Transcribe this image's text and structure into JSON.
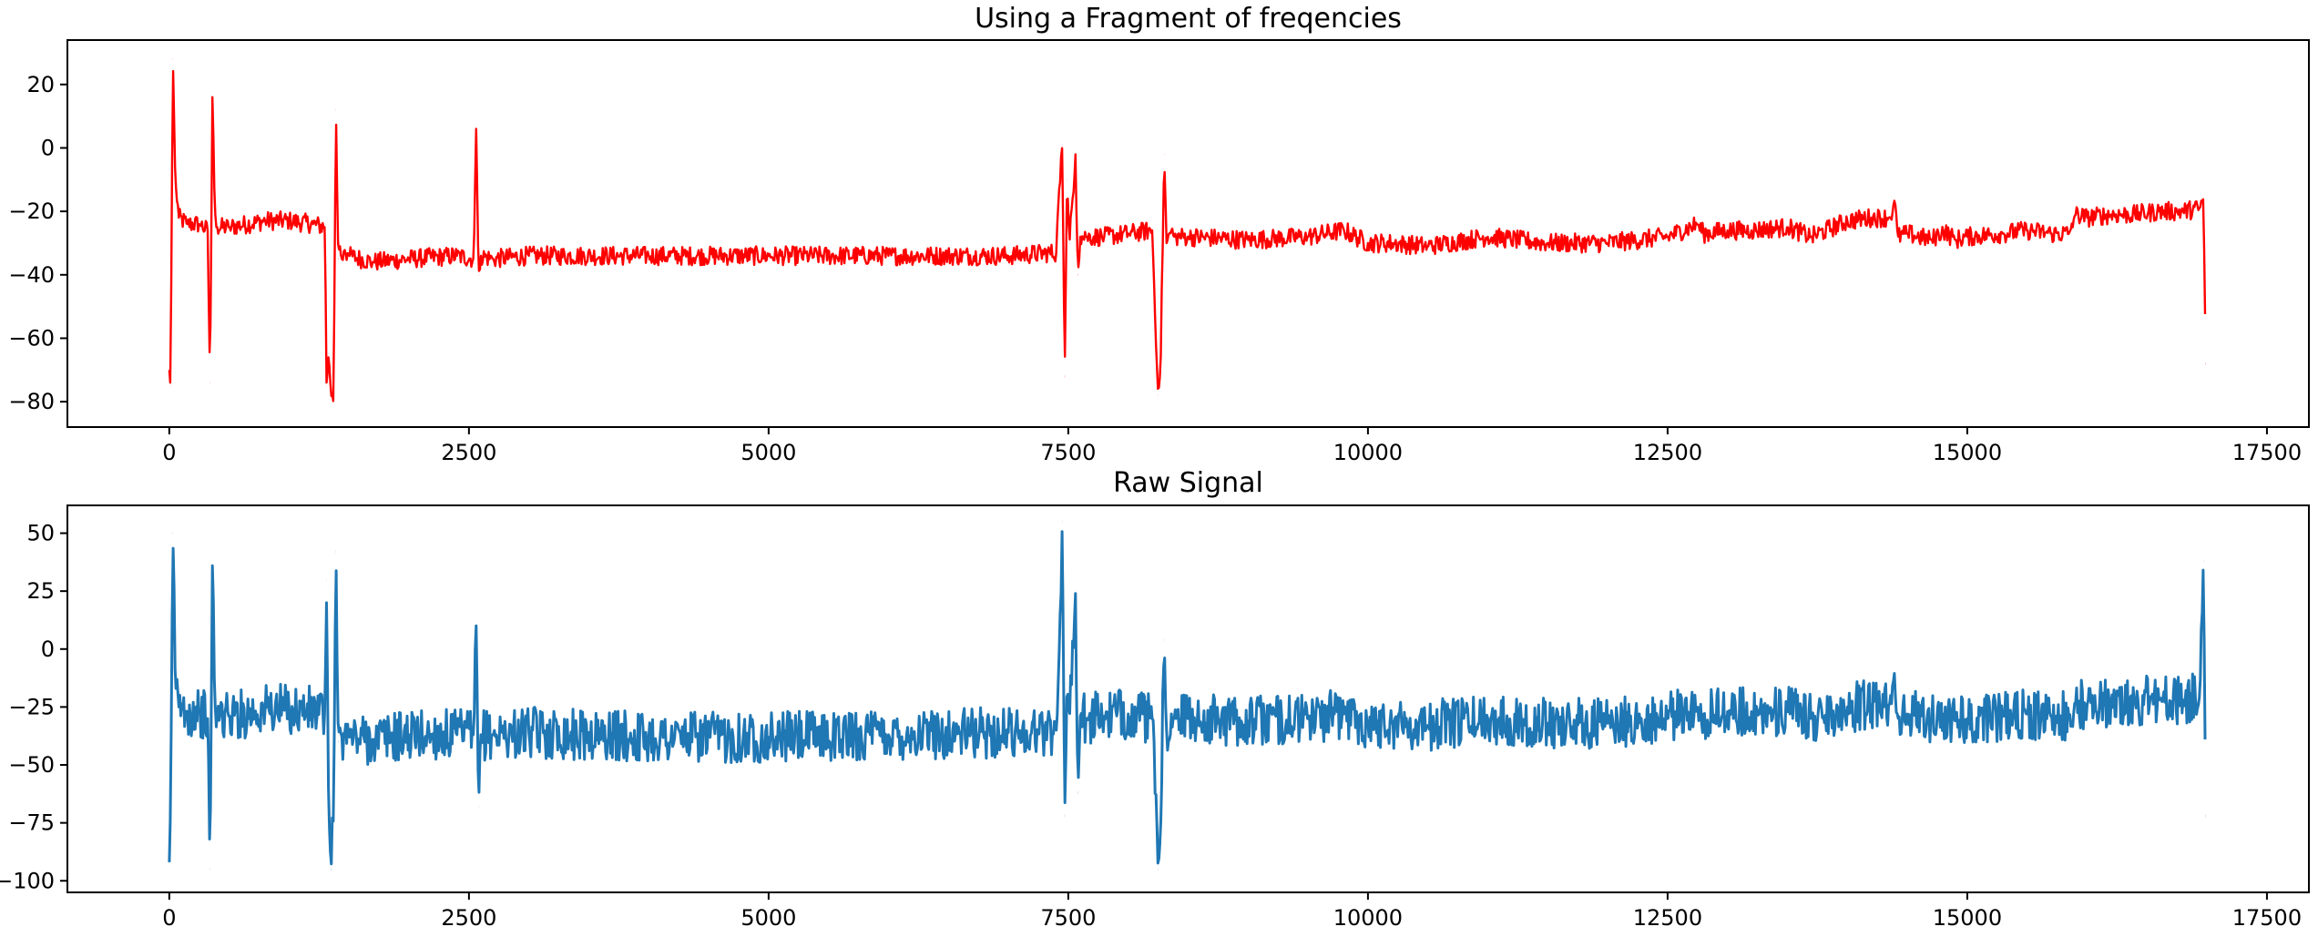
{
  "chart_data": [
    {
      "type": "line",
      "title": "Using a Fragment of freqencies",
      "xlabel": "",
      "ylabel": "",
      "xlim": [
        -850,
        17850
      ],
      "ylim": [
        -88,
        34
      ],
      "xticks": [
        0,
        2500,
        5000,
        7500,
        10000,
        12500,
        15000,
        17500
      ],
      "xtick_labels": [
        "0",
        "2500",
        "5000",
        "7500",
        "10000",
        "12500",
        "15000",
        "17500"
      ],
      "yticks": [
        20,
        0,
        -20,
        -40,
        -60,
        -80
      ],
      "ytick_labels": [
        "20",
        "0",
        "−20",
        "−40",
        "−60",
        "−80"
      ],
      "grid": false,
      "colors": {
        "line": "#ff0000"
      },
      "noise_amplitude": 3,
      "series": [
        {
          "color": "#ff0000",
          "x": [
            0,
            10,
            30,
            50,
            80,
            150,
            250,
            320,
            340,
            360,
            380,
            400,
            500,
            800,
            1000,
            1200,
            1300,
            1310,
            1330,
            1350,
            1370,
            1390,
            1410,
            1420,
            1440,
            1460,
            1500,
            1700,
            2000,
            2400,
            2540,
            2560,
            2580,
            2600,
            2700,
            3000,
            4000,
            5000,
            6000,
            7000,
            7400,
            7420,
            7450,
            7470,
            7490,
            7510,
            7560,
            7580,
            7600,
            7650,
            7800,
            8000,
            8200,
            8250,
            8270,
            8300,
            8320,
            8360,
            8380,
            8400,
            8500,
            9000,
            9500,
            9800,
            10000,
            10200,
            10500,
            11000,
            11500,
            12000,
            12500,
            12750,
            12800,
            13000,
            13200,
            13500,
            13700,
            14000,
            14200,
            14350,
            14400,
            14420,
            14500,
            14700,
            14800,
            14900,
            15000,
            15300,
            15500,
            15700,
            15850,
            15900,
            16000,
            16200,
            16400,
            16600,
            16800,
            16940,
            16970,
            16990
          ],
          "y": [
            -70,
            -75,
            28,
            -10,
            -22,
            -24,
            -24,
            -26,
            -74,
            16,
            -20,
            -25,
            -25,
            -23,
            -23,
            -24,
            -25,
            -75,
            -65,
            -78,
            -80,
            12,
            -35,
            -30,
            -35,
            -32,
            -34,
            -36,
            -35,
            -34,
            -35,
            6,
            -40,
            -34,
            -35,
            -34,
            -34,
            -34,
            -34,
            -34,
            -33,
            -15,
            1,
            -72,
            -10,
            -30,
            -2,
            -40,
            -28,
            -28,
            -28,
            -27,
            -26,
            -78,
            -70,
            -2,
            -30,
            -26,
            -28,
            -28,
            -28,
            -29,
            -28,
            -26,
            -30,
            -30,
            -31,
            -28,
            -30,
            -30,
            -28,
            -24,
            -27,
            -26,
            -26,
            -25,
            -28,
            -23,
            -22,
            -22,
            -18,
            -28,
            -27,
            -29,
            -26,
            -29,
            -28,
            -27,
            -26,
            -27,
            -27,
            -21,
            -22,
            -21,
            -21,
            -20,
            -20,
            -19,
            -16,
            -68
          ]
        }
      ]
    },
    {
      "type": "line",
      "title": "Raw Signal",
      "xlabel": "",
      "ylabel": "",
      "xlim": [
        -850,
        17850
      ],
      "ylim": [
        -105,
        62
      ],
      "xticks": [
        0,
        2500,
        5000,
        7500,
        10000,
        12500,
        15000,
        17500
      ],
      "xtick_labels": [
        "0",
        "2500",
        "5000",
        "7500",
        "10000",
        "12500",
        "15000",
        "17500"
      ],
      "yticks": [
        50,
        25,
        0,
        -25,
        -50,
        -75,
        -100
      ],
      "ytick_labels": [
        "50",
        "25",
        "0",
        "−25",
        "−50",
        "−75",
        "−100"
      ],
      "grid": false,
      "colors": {
        "line": "#1f77b4"
      },
      "noise_amplitude": 11,
      "series": [
        {
          "color": "#1f77b4",
          "x": [
            0,
            10,
            30,
            50,
            80,
            150,
            250,
            320,
            340,
            360,
            380,
            400,
            500,
            800,
            1000,
            1200,
            1300,
            1310,
            1330,
            1350,
            1370,
            1390,
            1410,
            1420,
            1440,
            1460,
            1500,
            1700,
            2000,
            2400,
            2540,
            2560,
            2580,
            2600,
            2700,
            3000,
            4000,
            5000,
            6000,
            7000,
            7400,
            7420,
            7450,
            7470,
            7490,
            7510,
            7560,
            7580,
            7600,
            7650,
            7800,
            8000,
            8200,
            8250,
            8270,
            8300,
            8320,
            8360,
            8380,
            8400,
            8500,
            9000,
            9500,
            9800,
            10000,
            10200,
            10500,
            11000,
            11500,
            12000,
            12500,
            12750,
            12800,
            13000,
            13200,
            13500,
            13700,
            14000,
            14200,
            14350,
            14400,
            14420,
            14500,
            14700,
            14800,
            14900,
            15000,
            15300,
            15500,
            15700,
            15850,
            15900,
            16000,
            16200,
            16400,
            16600,
            16800,
            16940,
            16970,
            16990
          ],
          "y": [
            -92,
            -70,
            50,
            -15,
            -25,
            -27,
            -27,
            -30,
            -95,
            36,
            -25,
            -28,
            -29,
            -26,
            -26,
            -27,
            -28,
            30,
            -70,
            -95,
            -72,
            42,
            -40,
            -33,
            -38,
            -36,
            -38,
            -39,
            -37,
            -37,
            -37,
            10,
            -68,
            -37,
            -37,
            -36,
            -38,
            -38,
            -37,
            -36,
            -35,
            -10,
            55,
            -72,
            -15,
            -30,
            24,
            -62,
            -29,
            -30,
            -29,
            -28,
            -30,
            -95,
            -80,
            4,
            -35,
            -28,
            -30,
            -30,
            -30,
            -31,
            -30,
            -28,
            -32,
            -32,
            -33,
            -30,
            -32,
            -32,
            -30,
            -25,
            -28,
            -27,
            -27,
            -27,
            -30,
            -25,
            -24,
            -24,
            -20,
            -30,
            -28,
            -31,
            -28,
            -31,
            -30,
            -29,
            -28,
            -29,
            -29,
            -23,
            -24,
            -23,
            -23,
            -22,
            -22,
            -21,
            38,
            -72
          ]
        }
      ]
    }
  ]
}
